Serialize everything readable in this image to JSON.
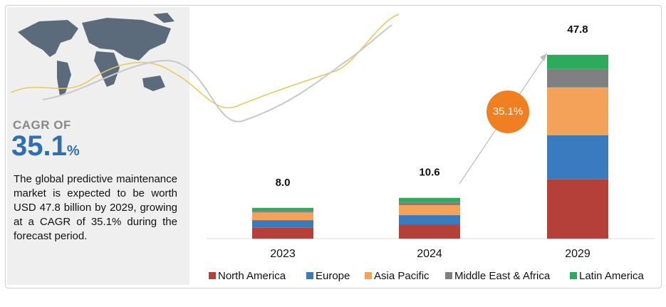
{
  "cagr": {
    "label": "CAGR OF",
    "value": "35.1",
    "unit": "%"
  },
  "description": "The global predictive maintenance market is expected to be worth USD 47.8 billion by 2029, growing at a CAGR of 35.1% during the forecast period.",
  "chart_data": {
    "type": "stacked_bar",
    "categories": [
      "2023",
      "2024",
      "2029"
    ],
    "series": [
      {
        "name": "North America",
        "color": "#b5403a",
        "values": [
          2.8,
          3.7,
          15.4
        ]
      },
      {
        "name": "Europe",
        "color": "#3a7bc0",
        "values": [
          2.0,
          2.4,
          11.5
        ]
      },
      {
        "name": "Asia Pacific",
        "color": "#f4a259",
        "values": [
          2.0,
          2.6,
          12.4
        ]
      },
      {
        "name": "Middle East & Africa",
        "color": "#808080",
        "values": [
          0.4,
          0.9,
          4.8
        ]
      },
      {
        "name": "Latin America",
        "color": "#2eaa5c",
        "values": [
          0.8,
          1.0,
          3.7
        ]
      }
    ],
    "totals": {
      "values": [
        8,
        10.6,
        47.8
      ],
      "value_labels": [
        "8.0",
        "10.6",
        "47.8"
      ]
    },
    "annotation": "35.1%",
    "ylim": [
      0,
      50
    ],
    "legend": "bottom"
  }
}
